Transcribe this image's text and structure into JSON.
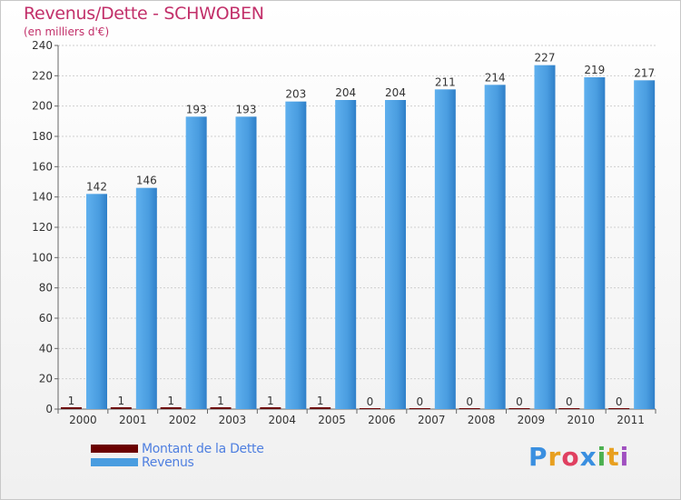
{
  "header": {
    "title": "Revenus/Dette - SCHWOBEN",
    "subtitle": "(en milliers d'€)"
  },
  "chart_data": {
    "type": "bar",
    "title": "Revenus/Dette - SCHWOBEN",
    "subtitle": "(en milliers d'€)",
    "categories": [
      "2000",
      "2001",
      "2002",
      "2003",
      "2004",
      "2005",
      "2006",
      "2007",
      "2008",
      "2009",
      "2010",
      "2011"
    ],
    "series": [
      {
        "name": "Montant de la Dette",
        "values": [
          1,
          1,
          1,
          1,
          1,
          1,
          0,
          0,
          0,
          0,
          0,
          0
        ],
        "color": "#6b0000"
      },
      {
        "name": "Revenus",
        "values": [
          142,
          146,
          193,
          193,
          203,
          204,
          204,
          211,
          214,
          227,
          219,
          217
        ],
        "color": "#4a9de0"
      }
    ],
    "ylim": [
      0,
      240
    ],
    "yticks": [
      0,
      20,
      40,
      60,
      80,
      100,
      120,
      140,
      160,
      180,
      200,
      220,
      240
    ],
    "grid": true,
    "legend": "bottom-left"
  },
  "legend": {
    "items": [
      {
        "label": "Montant de la Dette",
        "color": "#6b0000"
      },
      {
        "label": "Revenus",
        "color": "#4a9de0"
      }
    ]
  },
  "logo": {
    "letters": [
      "P",
      "r",
      "o",
      "x",
      "i",
      "t",
      "i"
    ],
    "colors": [
      "#3a8fe0",
      "#e8a020",
      "#e04060",
      "#3a8fe0",
      "#4cb050",
      "#e8a020",
      "#a050c0"
    ]
  }
}
